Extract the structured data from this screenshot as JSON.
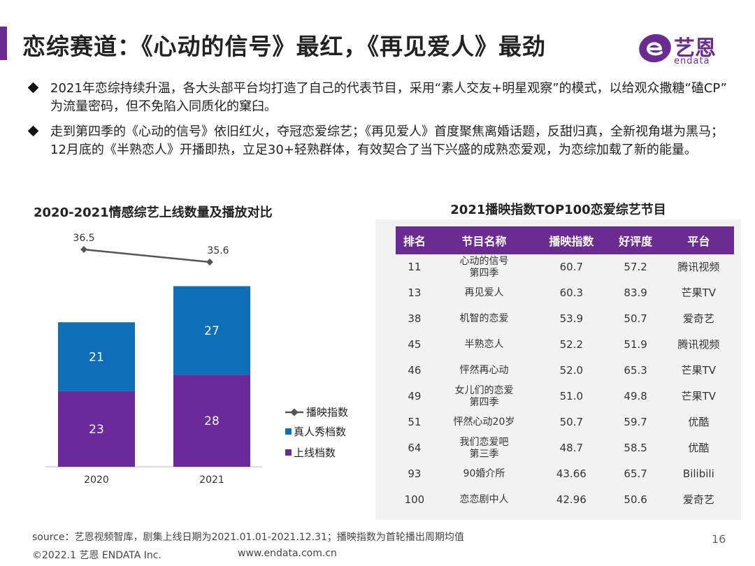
{
  "header": {
    "title": "恋综赛道：《心动的信号》最红，《再见爱人》最劲",
    "logo_cn": "艺恩",
    "logo_en": "endata"
  },
  "bullets": [
    "2021年恋综持续升温，各大头部平台均打造了自己的代表节目，采用“素人交友+明星观察”的模式，以给观众撒糖“磕CP” 为流量密码，但不免陷入同质化的窠臼。",
    "走到第四季的《心动的信号》依旧红火，夺冠恋爱综艺；《再见爱人》首度聚焦离婚话题，反甜归真，全新视角堪为黑马；12月底的《半熟恋人》开播即热，立足30+轻熟群体，有效契合了当下兴盛的成熟恋爱观，为恋综加载了新的能量。"
  ],
  "chart_data": {
    "type": "bar",
    "title": "2020-2021情感综艺上线数量及播放对比",
    "categories": [
      "2020",
      "2021"
    ],
    "stacked": true,
    "series": [
      {
        "name": "上线档数",
        "type": "bar",
        "color": "#6a2a9c",
        "values": [
          23,
          28
        ]
      },
      {
        "name": "真人秀档数",
        "type": "bar",
        "color": "#0e6fb8",
        "values": [
          21,
          27
        ]
      },
      {
        "name": "播映指数",
        "type": "line",
        "color": "#555555",
        "values": [
          36.5,
          35.6
        ]
      }
    ],
    "legend_position": "right",
    "grid": false
  },
  "table": {
    "title": "2021播映指数TOP100恋爱综艺节目",
    "headers": [
      "排名",
      "节目名称",
      "播映指数",
      "好评度",
      "平台"
    ],
    "rows": [
      {
        "rank": "11",
        "name": [
          "心动的信号",
          "第四季"
        ],
        "index": "60.7",
        "rating": "57.2",
        "platform": "腾讯视频"
      },
      {
        "rank": "13",
        "name": [
          "再见爱人"
        ],
        "index": "60.3",
        "rating": "83.9",
        "platform": "芒果TV"
      },
      {
        "rank": "38",
        "name": [
          "机智的恋爱"
        ],
        "index": "53.9",
        "rating": "50.7",
        "platform": "爱奇艺"
      },
      {
        "rank": "45",
        "name": [
          "半熟恋人"
        ],
        "index": "52.2",
        "rating": "51.9",
        "platform": "腾讯视频"
      },
      {
        "rank": "46",
        "name": [
          "怦然再心动"
        ],
        "index": "52.0",
        "rating": "65.3",
        "platform": "芒果TV"
      },
      {
        "rank": "49",
        "name": [
          "女儿们的恋爱",
          "第四季"
        ],
        "index": "51.0",
        "rating": "49.8",
        "platform": "芒果TV"
      },
      {
        "rank": "51",
        "name": [
          "怦然心动20岁"
        ],
        "index": "50.7",
        "rating": "59.7",
        "platform": "优酷"
      },
      {
        "rank": "64",
        "name": [
          "我们恋爱吧",
          "第三季"
        ],
        "index": "48.7",
        "rating": "58.5",
        "platform": "优酷"
      },
      {
        "rank": "93",
        "name": [
          "90婚介所"
        ],
        "index": "43.66",
        "rating": "65.7",
        "platform": "Bilibili"
      },
      {
        "rank": "100",
        "name": [
          "恋恋剧中人"
        ],
        "index": "42.96",
        "rating": "50.6",
        "platform": "爱奇艺"
      }
    ]
  },
  "footer": {
    "source": "source：艺恩视频智库，剧集上线日期为2021.01.01-2021.12.31；播映指数为首轮播出周期均值",
    "copyright": "©2022.1 艺恩 ENDATA Inc.",
    "website": "www.endata.com.cn",
    "page_number": "16"
  }
}
